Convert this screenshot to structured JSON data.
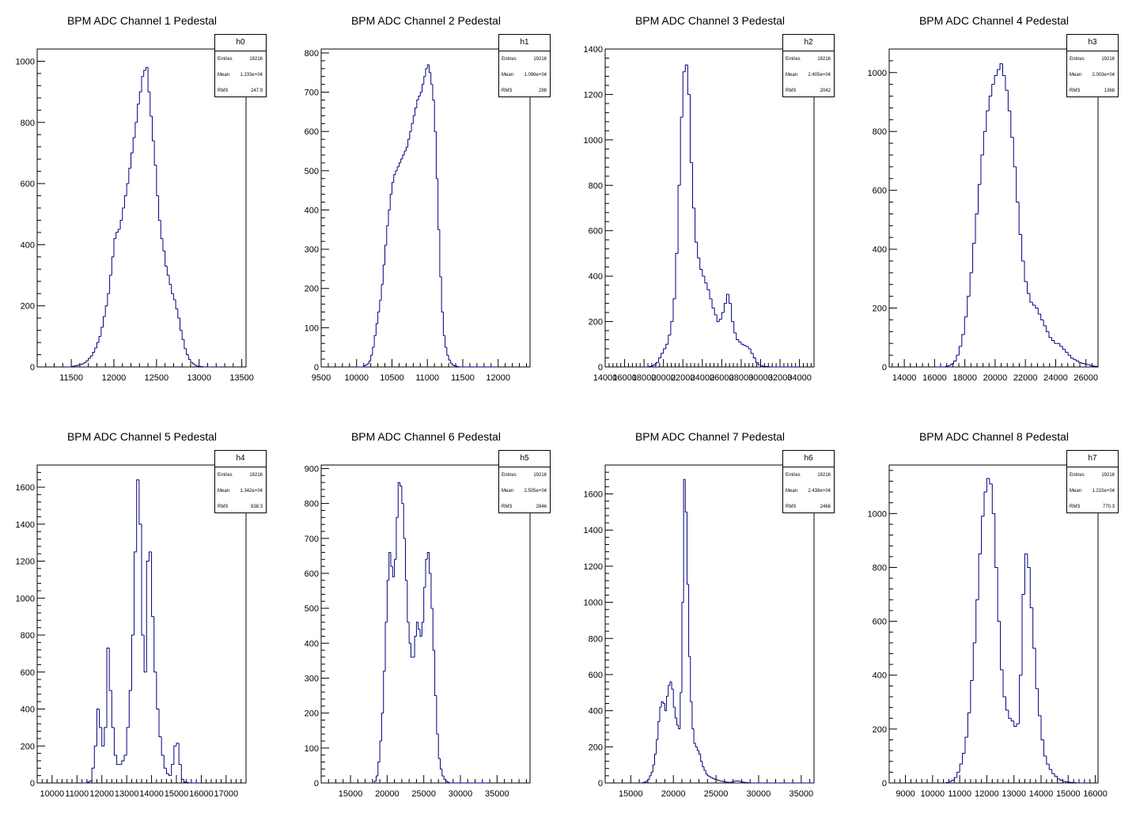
{
  "chart_data": [
    {
      "type": "histogram",
      "title": "BPM ADC Channel 1 Pedestal",
      "stats": {
        "name": "h0",
        "entries_label": "Entries",
        "entries": "19216",
        "mean_label": "Mean",
        "mean": "1.233e+04",
        "rms_label": "RMS",
        "rms": "247.9"
      },
      "xlim": [
        11100,
        13550
      ],
      "ylim": [
        0,
        1040
      ],
      "xticks": [
        11500,
        12000,
        12500,
        13000,
        13500
      ],
      "xtick_labels": [
        "11500",
        "12000",
        "12500",
        "13000",
        "13500"
      ],
      "yticks": [
        0,
        200,
        400,
        600,
        800,
        1000
      ],
      "ytick_labels": [
        "0",
        "200",
        "400",
        "600",
        "800",
        "1000"
      ],
      "bin_edges": [
        11450,
        13250
      ],
      "counts": [
        0,
        0,
        2,
        3,
        4,
        6,
        8,
        10,
        14,
        20,
        28,
        36,
        48,
        62,
        80,
        100,
        130,
        165,
        200,
        240,
        300,
        360,
        420,
        440,
        450,
        480,
        520,
        560,
        600,
        650,
        700,
        750,
        800,
        860,
        900,
        950,
        970,
        980,
        900,
        820,
        740,
        660,
        560,
        480,
        420,
        380,
        330,
        300,
        270,
        240,
        220,
        190,
        160,
        120,
        90,
        60,
        40,
        25,
        15,
        10,
        5,
        3,
        2,
        1,
        0,
        0,
        0,
        0,
        0,
        0,
        0,
        0
      ]
    },
    {
      "type": "histogram",
      "title": "BPM ADC Channel 2 Pedestal",
      "stats": {
        "name": "h1",
        "entries_label": "Entries",
        "entries": "19216",
        "mean_label": "Mean",
        "mean": "1.096e+04",
        "rms_label": "RMS",
        "rms": "298"
      },
      "xlim": [
        9500,
        12450
      ],
      "ylim": [
        0,
        810
      ],
      "xticks": [
        9500,
        10000,
        10500,
        11000,
        11500,
        12000
      ],
      "xtick_labels": [
        "9500",
        "10000",
        "10500",
        "11000",
        "11500",
        "12000"
      ],
      "yticks": [
        0,
        100,
        200,
        300,
        400,
        500,
        600,
        700,
        800
      ],
      "ytick_labels": [
        "0",
        "100",
        "200",
        "300",
        "400",
        "500",
        "600",
        "700",
        "800"
      ],
      "bin_edges": [
        10000,
        12000
      ],
      "counts": [
        0,
        0,
        0,
        0,
        3,
        5,
        8,
        15,
        30,
        50,
        80,
        110,
        140,
        170,
        210,
        260,
        310,
        360,
        400,
        440,
        470,
        490,
        500,
        510,
        520,
        530,
        540,
        550,
        560,
        580,
        600,
        620,
        640,
        660,
        680,
        690,
        700,
        720,
        740,
        760,
        770,
        750,
        720,
        680,
        600,
        480,
        350,
        230,
        140,
        80,
        50,
        30,
        18,
        10,
        5,
        3,
        2,
        1,
        0,
        0,
        0,
        0,
        0,
        0,
        0,
        0,
        0,
        0,
        0,
        0,
        0,
        0,
        0,
        0,
        0,
        0,
        0,
        0,
        0,
        0
      ]
    },
    {
      "type": "histogram",
      "title": "BPM ADC Channel 3 Pedestal",
      "stats": {
        "name": "h2",
        "entries_label": "Entries",
        "entries": "19216",
        "mean_label": "Mean",
        "mean": "2.405e+04",
        "rms_label": "RMS",
        "rms": "2042"
      },
      "xlim": [
        14000,
        35500
      ],
      "ylim": [
        0,
        1400
      ],
      "xticks": [
        14000,
        16000,
        18000,
        20000,
        22000,
        24000,
        26000,
        28000,
        30000,
        32000,
        34000
      ],
      "xtick_labels": [
        "14000",
        "16000",
        "18000",
        "20000",
        "22000",
        "24000",
        "26000",
        "28000",
        "30000",
        "32000",
        "34000"
      ],
      "yticks": [
        0,
        200,
        400,
        600,
        800,
        1000,
        1200,
        1400
      ],
      "ytick_labels": [
        "0",
        "200",
        "400",
        "600",
        "800",
        "1000",
        "1200",
        "1400"
      ],
      "bin_edges": [
        18000,
        34000
      ],
      "counts": [
        0,
        0,
        2,
        5,
        10,
        20,
        40,
        60,
        80,
        100,
        140,
        200,
        300,
        500,
        800,
        1100,
        1300,
        1330,
        1200,
        900,
        700,
        550,
        480,
        430,
        400,
        370,
        340,
        300,
        260,
        230,
        200,
        210,
        240,
        280,
        320,
        280,
        200,
        150,
        120,
        110,
        100,
        95,
        90,
        80,
        60,
        40,
        20,
        10,
        5,
        3,
        2,
        1,
        0,
        0,
        0,
        0,
        0,
        0,
        0,
        0,
        0,
        0,
        0,
        0
      ]
    },
    {
      "type": "histogram",
      "title": "BPM ADC Channel 4 Pedestal",
      "stats": {
        "name": "h3",
        "entries_label": "Entries",
        "entries": "19216",
        "mean_label": "Mean",
        "mean": "2.003e+04",
        "rms_label": "RMS",
        "rms": "1368"
      },
      "xlim": [
        13000,
        26800
      ],
      "ylim": [
        0,
        1080
      ],
      "xticks": [
        14000,
        16000,
        18000,
        20000,
        22000,
        24000,
        26000
      ],
      "xtick_labels": [
        "14000",
        "16000",
        "18000",
        "20000",
        "22000",
        "24000",
        "26000"
      ],
      "yticks": [
        0,
        200,
        400,
        600,
        800,
        1000
      ],
      "ytick_labels": [
        "0",
        "200",
        "400",
        "600",
        "800",
        "1000"
      ],
      "bin_edges": [
        16000,
        26800
      ],
      "counts": [
        0,
        0,
        0,
        0,
        2,
        5,
        10,
        20,
        40,
        70,
        110,
        170,
        240,
        320,
        420,
        520,
        620,
        720,
        800,
        870,
        920,
        960,
        990,
        1010,
        1030,
        990,
        940,
        870,
        780,
        680,
        560,
        450,
        360,
        290,
        250,
        220,
        210,
        200,
        180,
        160,
        140,
        120,
        100,
        90,
        80,
        80,
        70,
        60,
        50,
        40,
        30,
        25,
        20,
        15,
        12,
        10,
        8,
        5,
        3,
        2
      ]
    },
    {
      "type": "histogram",
      "title": "BPM ADC Channel 5 Pedestal",
      "stats": {
        "name": "h4",
        "entries_label": "Entries",
        "entries": "19216",
        "mean_label": "Mean",
        "mean": "1.342e+04",
        "rms_label": "RMS",
        "rms": "838.3"
      },
      "xlim": [
        9400,
        17800
      ],
      "ylim": [
        0,
        1720
      ],
      "xticks": [
        10000,
        11000,
        12000,
        13000,
        14000,
        15000,
        16000,
        17000
      ],
      "xtick_labels": [
        "10000",
        "11000",
        "12000",
        "13000",
        "14000",
        "15000",
        "16000",
        "17000"
      ],
      "yticks": [
        0,
        200,
        400,
        600,
        800,
        1000,
        1200,
        1400,
        1600
      ],
      "ytick_labels": [
        "0",
        "200",
        "400",
        "600",
        "800",
        "1000",
        "1200",
        "1400",
        "1600"
      ],
      "bin_edges": [
        11200,
        16000
      ],
      "counts": [
        0,
        0,
        5,
        10,
        80,
        200,
        400,
        300,
        200,
        300,
        730,
        500,
        300,
        150,
        100,
        100,
        120,
        150,
        300,
        500,
        800,
        1250,
        1640,
        1400,
        800,
        600,
        1200,
        1250,
        900,
        600,
        400,
        250,
        150,
        80,
        50,
        40,
        100,
        200,
        215,
        100,
        20,
        5,
        2,
        0,
        0,
        0,
        0,
        0
      ]
    },
    {
      "type": "histogram",
      "title": "BPM ADC Channel 6 Pedestal",
      "stats": {
        "name": "h5",
        "entries_label": "Entries",
        "entries": "19216",
        "mean_label": "Mean",
        "mean": "2.505e+04",
        "rms_label": "RMS",
        "rms": "2846"
      },
      "xlim": [
        11000,
        39500
      ],
      "ylim": [
        0,
        910
      ],
      "xticks": [
        15000,
        20000,
        25000,
        30000,
        35000
      ],
      "xtick_labels": [
        "15000",
        "20000",
        "25000",
        "30000",
        "35000"
      ],
      "yticks": [
        0,
        100,
        200,
        300,
        400,
        500,
        600,
        700,
        800,
        900
      ],
      "ytick_labels": [
        "0",
        "100",
        "200",
        "300",
        "400",
        "500",
        "600",
        "700",
        "800",
        "900"
      ],
      "bin_edges": [
        18000,
        34000
      ],
      "counts": [
        0,
        5,
        20,
        60,
        120,
        200,
        320,
        460,
        580,
        660,
        620,
        590,
        640,
        760,
        860,
        850,
        800,
        700,
        580,
        460,
        400,
        360,
        360,
        420,
        460,
        440,
        420,
        460,
        560,
        640,
        660,
        600,
        500,
        380,
        250,
        140,
        70,
        40,
        20,
        10,
        5,
        2,
        0,
        0,
        0,
        0,
        0,
        0,
        0,
        0,
        0,
        0,
        0,
        0,
        0,
        0,
        0,
        0,
        0,
        0,
        0,
        0,
        0,
        0
      ]
    },
    {
      "type": "histogram",
      "title": "BPM ADC Channel 7 Pedestal",
      "stats": {
        "name": "h6",
        "entries_label": "Entries",
        "entries": "19216",
        "mean_label": "Mean",
        "mean": "2.438e+04",
        "rms_label": "RMS",
        "rms": "2466"
      },
      "xlim": [
        12000,
        36500
      ],
      "ylim": [
        0,
        1760
      ],
      "xticks": [
        15000,
        20000,
        25000,
        30000,
        35000
      ],
      "xtick_labels": [
        "15000",
        "20000",
        "25000",
        "30000",
        "35000"
      ],
      "yticks": [
        0,
        200,
        400,
        600,
        800,
        1000,
        1200,
        1400,
        1600
      ],
      "ytick_labels": [
        "0",
        "200",
        "400",
        "600",
        "800",
        "1000",
        "1200",
        "1400",
        "1600"
      ],
      "bin_edges": [
        16000,
        36400
      ],
      "counts": [
        0,
        0,
        2,
        5,
        10,
        20,
        40,
        60,
        100,
        160,
        240,
        340,
        420,
        450,
        440,
        400,
        480,
        540,
        560,
        520,
        420,
        360,
        320,
        300,
        500,
        1000,
        1680,
        1500,
        1100,
        700,
        450,
        300,
        220,
        200,
        180,
        160,
        120,
        90,
        70,
        50,
        40,
        35,
        30,
        25,
        20,
        18,
        15,
        12,
        10,
        8,
        6,
        5,
        4,
        3,
        5,
        8,
        10,
        12,
        10,
        8,
        6,
        4,
        3,
        2,
        1,
        0,
        0,
        0,
        0,
        0,
        0,
        0,
        0,
        0,
        0,
        0,
        0,
        0,
        0,
        0,
        0,
        0,
        0,
        0,
        0,
        0,
        0,
        0,
        0,
        0,
        0,
        0,
        0,
        0,
        0,
        0,
        0,
        0,
        0,
        0,
        0,
        0
      ]
    },
    {
      "type": "histogram",
      "title": "BPM ADC Channel 8 Pedestal",
      "stats": {
        "name": "h7",
        "entries_label": "Entries",
        "entries": "19216",
        "mean_label": "Mean",
        "mean": "1.215e+04",
        "rms_label": "RMS",
        "rms": "770.3"
      },
      "xlim": [
        8400,
        16100
      ],
      "ylim": [
        0,
        1180
      ],
      "xticks": [
        9000,
        10000,
        11000,
        12000,
        13000,
        14000,
        15000,
        16000
      ],
      "xtick_labels": [
        "9000",
        "10000",
        "11000",
        "12000",
        "13000",
        "14000",
        "15000",
        "16000"
      ],
      "yticks": [
        0,
        200,
        400,
        600,
        800,
        1000
      ],
      "ytick_labels": [
        "0",
        "200",
        "400",
        "600",
        "800",
        "1000"
      ],
      "bin_edges": [
        10400,
        15600
      ],
      "counts": [
        0,
        2,
        5,
        10,
        20,
        40,
        70,
        110,
        170,
        260,
        380,
        520,
        680,
        850,
        990,
        1080,
        1130,
        1110,
        1000,
        800,
        600,
        420,
        320,
        270,
        240,
        230,
        210,
        220,
        400,
        700,
        850,
        800,
        650,
        500,
        350,
        250,
        160,
        100,
        70,
        50,
        35,
        25,
        15,
        10,
        6,
        4,
        3,
        2,
        1,
        0,
        0,
        0
      ]
    }
  ]
}
